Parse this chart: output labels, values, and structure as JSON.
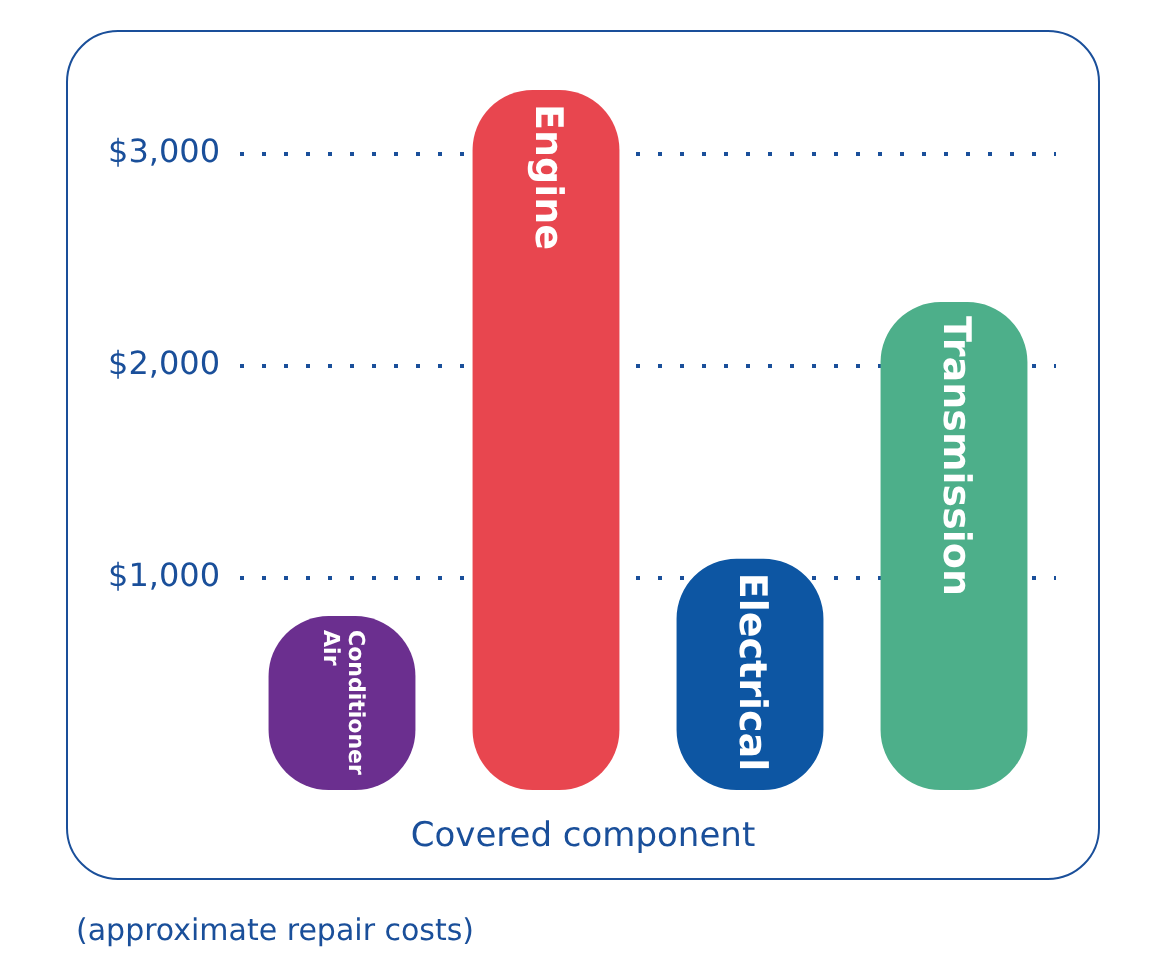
{
  "chart_data": {
    "type": "bar",
    "xlabel": "Covered component",
    "categories": [
      "Air Conditioner",
      "Engine",
      "Electrical",
      "Transmission"
    ],
    "values": [
      820,
      3300,
      1090,
      2300
    ],
    "colors": [
      "#6b2f8f",
      "#e8464f",
      "#0d56a3",
      "#4daf8a"
    ],
    "ylim": [
      0,
      3300
    ],
    "yticks": [
      {
        "value": 1000,
        "label": "$1,000"
      },
      {
        "value": 2000,
        "label": "$2,000"
      },
      {
        "value": 3000,
        "label": "$3,000"
      }
    ],
    "grid": "y",
    "annotations": [
      "(approximate repair costs)"
    ]
  }
}
